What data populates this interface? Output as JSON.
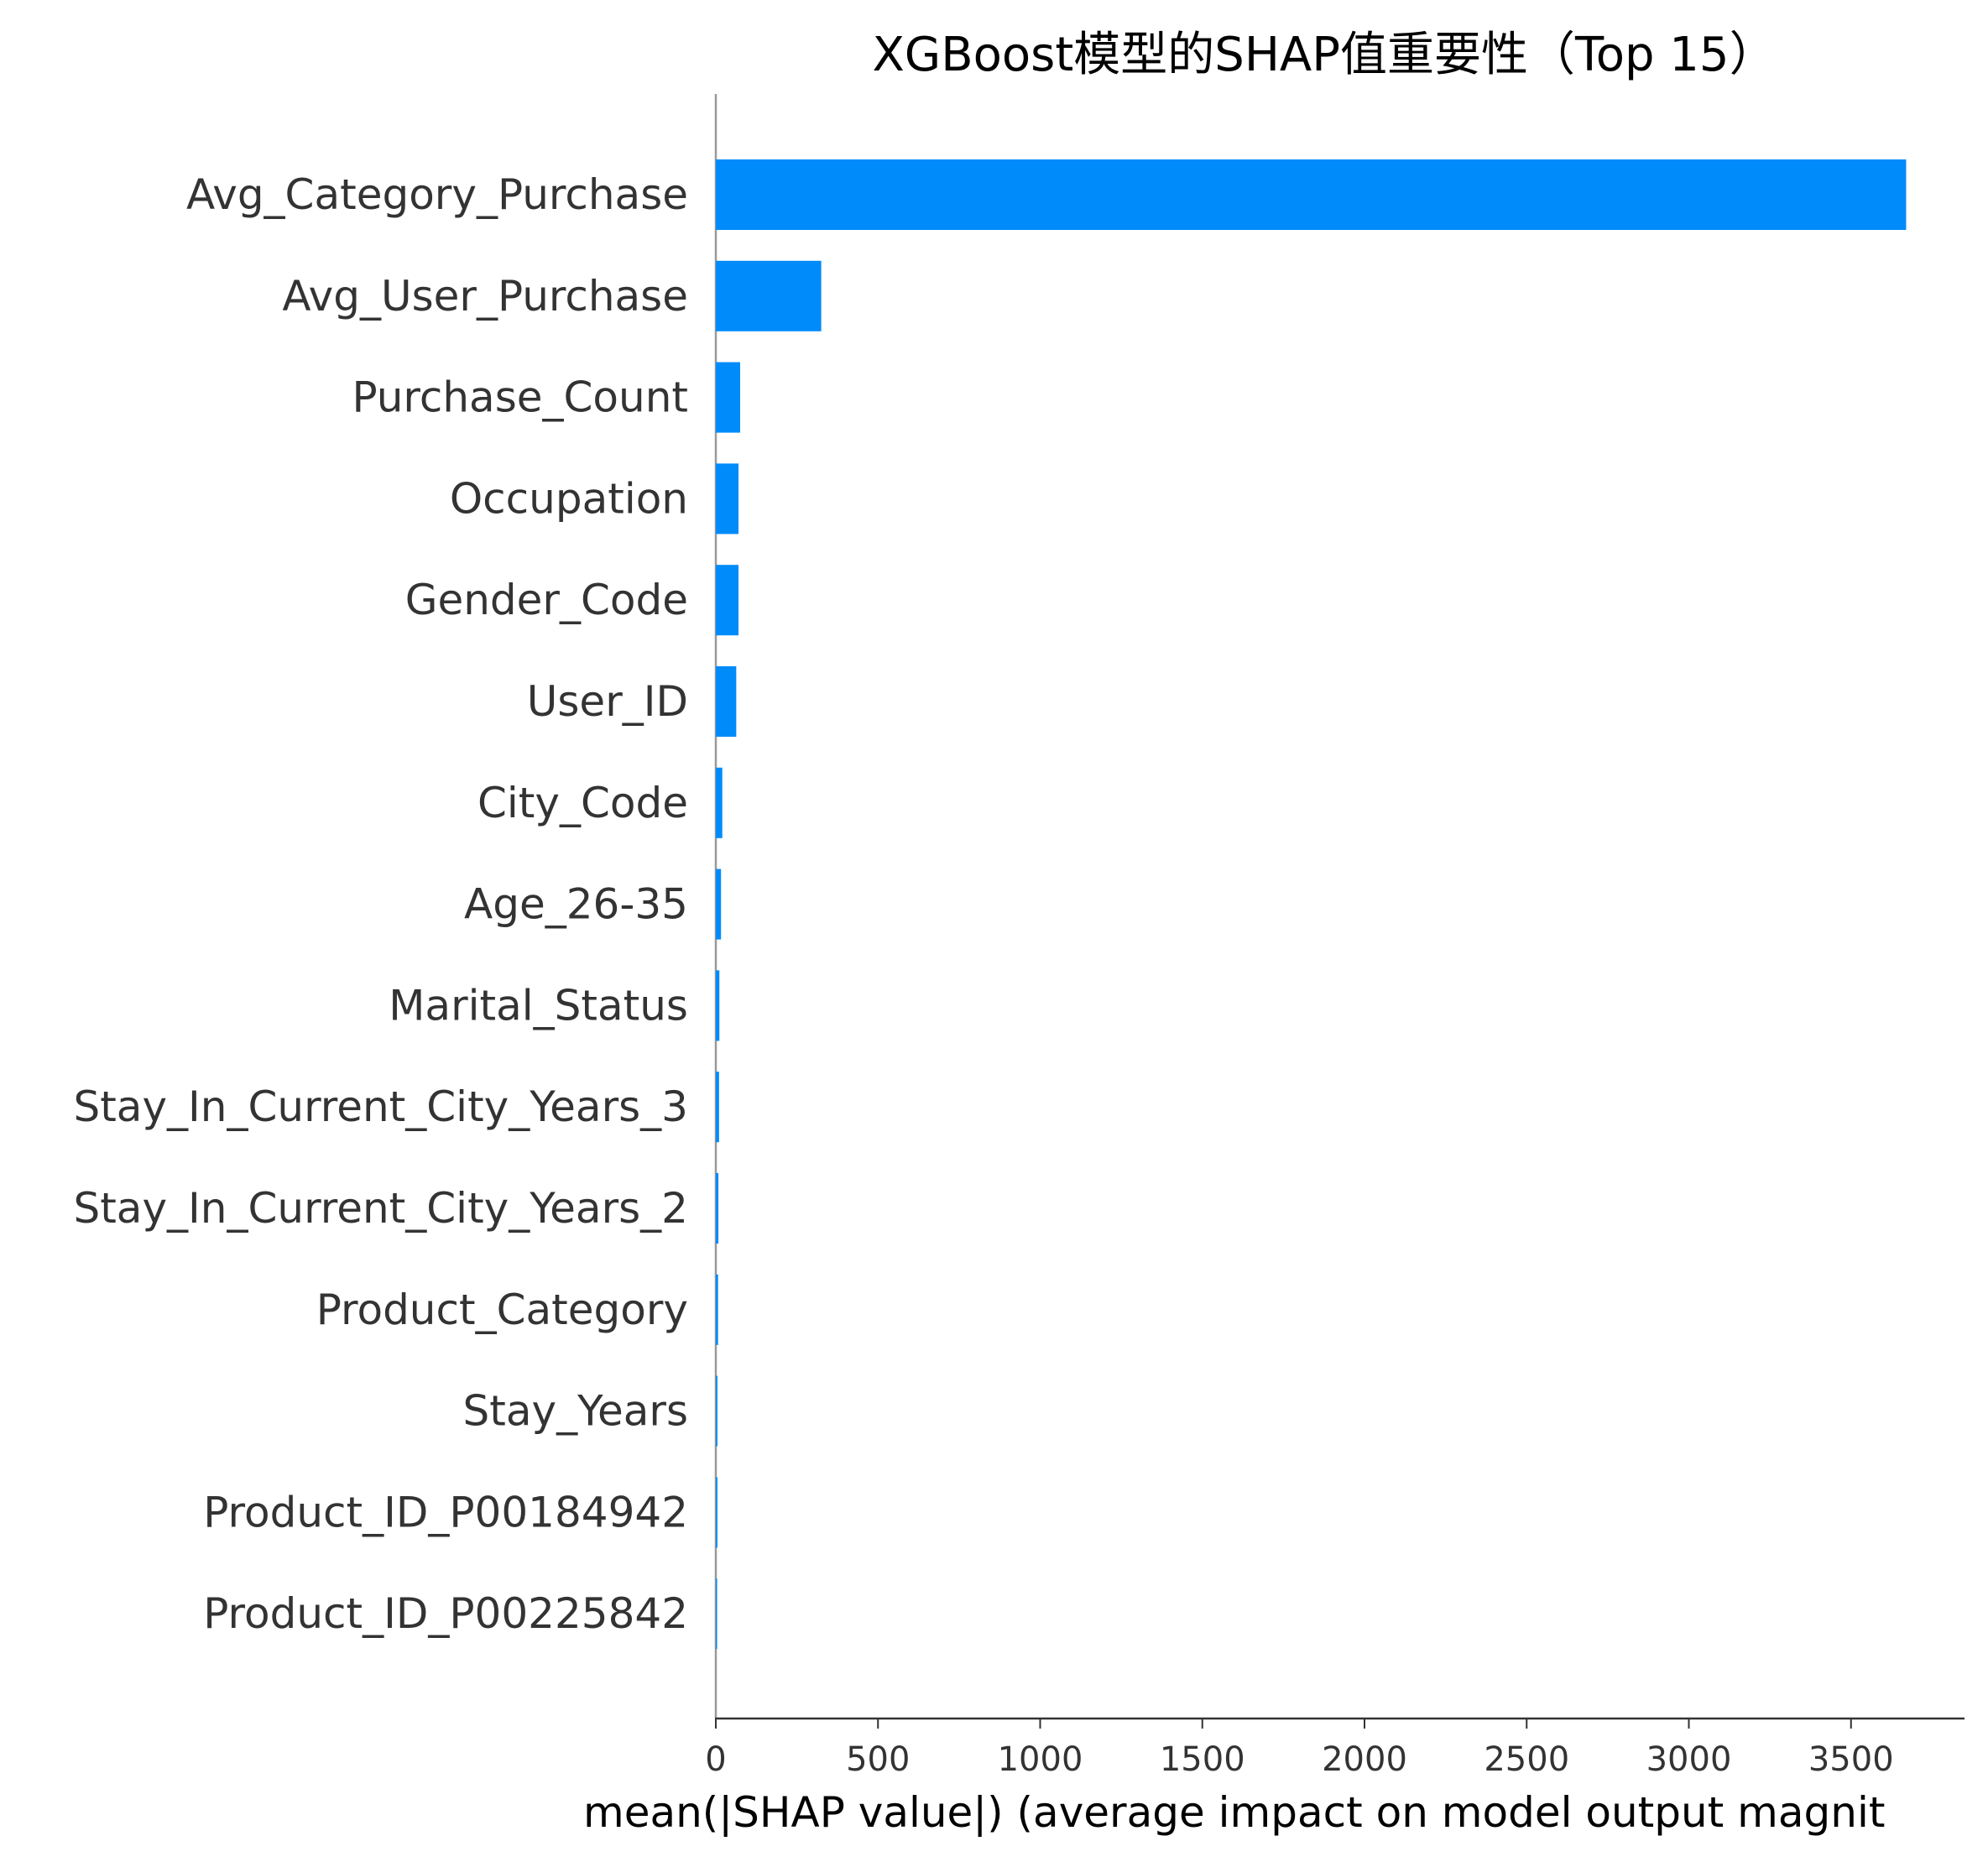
{
  "chart_data": {
    "type": "bar",
    "orientation": "horizontal",
    "title": "XGBoost模型的SHAP值重要性（Top 15）",
    "xlabel": "mean(|SHAP value|) (average impact on model output magnit",
    "ylabel": "",
    "xlim": [
      0,
      3850
    ],
    "xticks": [
      0,
      500,
      1000,
      1500,
      2000,
      2500,
      3000,
      3500
    ],
    "xtick_labels": [
      "0",
      "500",
      "1000",
      "1500",
      "2000",
      "2500",
      "3000",
      "3500"
    ],
    "grid": false,
    "bar_color": "#008bfb",
    "categories": [
      "Avg_Category_Purchase",
      "Avg_User_Purchase",
      "Purchase_Count",
      "Occupation",
      "Gender_Code",
      "User_ID",
      "City_Code",
      "Age_26-35",
      "Marital_Status",
      "Stay_In_Current_City_Years_3",
      "Stay_In_Current_City_Years_2",
      "Product_Category",
      "Stay_Years",
      "Product_ID_P00184942",
      "Product_ID_P00225842"
    ],
    "values": [
      3670,
      325,
      75,
      70,
      70,
      63,
      20,
      16,
      11,
      10,
      8,
      7,
      5,
      5,
      4
    ]
  }
}
